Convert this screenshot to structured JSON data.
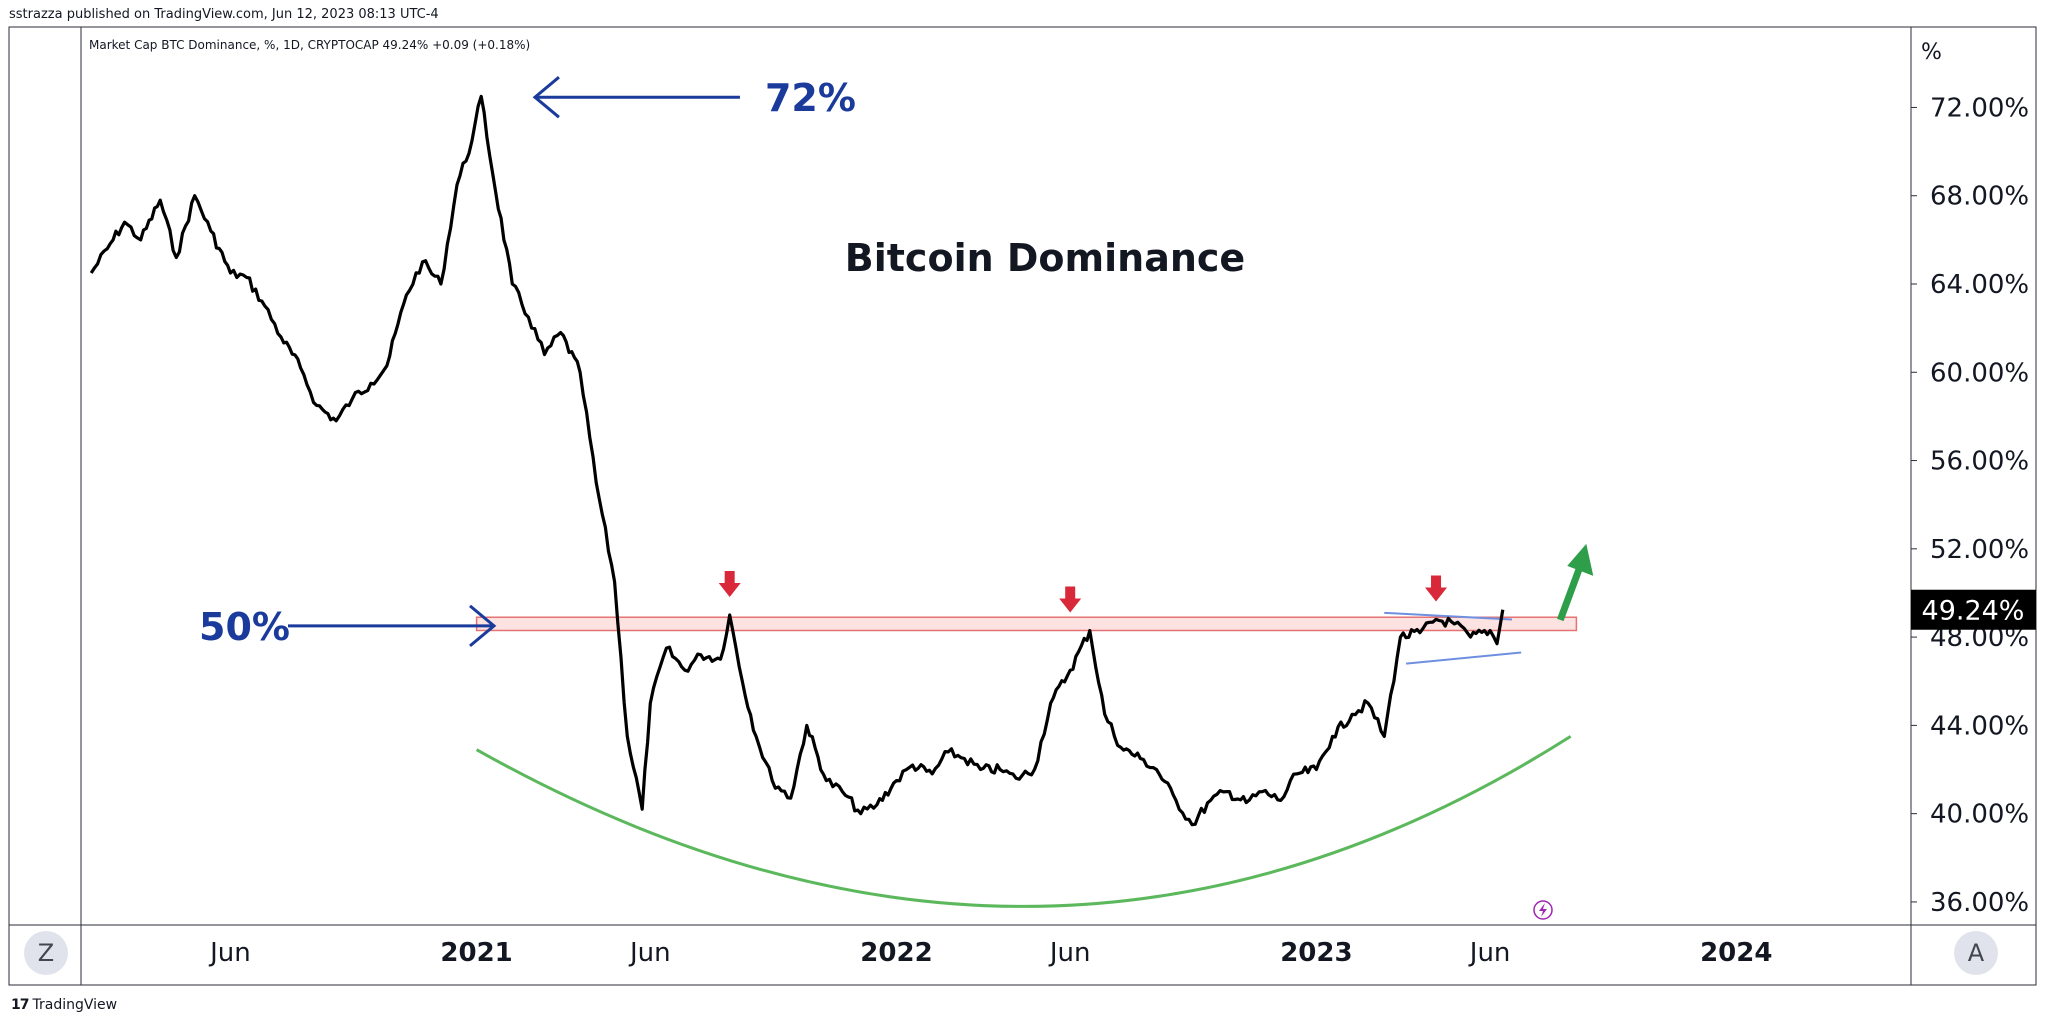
{
  "header": {
    "publisher": "sstrazza published on TradingView.com, Jun 12, 2023 08:13 UTC-4",
    "legend": "Market Cap BTC Dominance, %, 1D, CRYPTOCAP  49.24%  +0.09 (+0.18%)"
  },
  "footer": {
    "logo_text": "TradingView"
  },
  "controls": {
    "zoom_label": "Z",
    "auto_label": "A"
  },
  "colors": {
    "line": "#000000",
    "annotation_blue": "#1a3a9c",
    "support_arc": "#5cb85c",
    "resistance_fill": "#fde2e2",
    "resistance_stroke": "#e57373",
    "down_arrow": "#d9283a",
    "up_arrow": "#2e9e4a",
    "channel_line": "#6f8fe0",
    "price_label_bg": "#000000"
  },
  "chart_data": {
    "type": "line",
    "title": "Bitcoin Dominance",
    "series": [
      {
        "x": [
          "2020-02-01",
          "2020-02-15",
          "2020-03-01",
          "2020-03-15",
          "2020-04-01",
          "2020-04-15",
          "2020-05-01",
          "2020-05-15",
          "2020-06-01",
          "2020-06-15",
          "2020-07-01",
          "2020-07-15",
          "2020-08-01",
          "2020-08-15",
          "2020-09-01",
          "2020-09-15",
          "2020-10-01",
          "2020-10-15",
          "2020-11-01",
          "2020-11-15",
          "2020-12-01",
          "2020-12-15",
          "2020-12-28",
          "2021-01-05",
          "2021-01-15",
          "2021-02-01",
          "2021-02-15",
          "2021-03-01",
          "2021-03-15",
          "2021-04-01",
          "2021-04-15",
          "2021-05-01",
          "2021-05-12",
          "2021-05-25",
          "2021-06-01",
          "2021-06-15",
          "2021-07-01",
          "2021-07-15",
          "2021-08-01",
          "2021-08-09",
          "2021-08-20",
          "2021-09-01",
          "2021-09-15",
          "2021-10-01",
          "2021-10-15",
          "2021-11-01",
          "2021-11-15",
          "2021-12-01",
          "2021-12-15",
          "2022-01-01",
          "2022-01-15",
          "2022-02-01",
          "2022-02-15",
          "2022-03-01",
          "2022-03-15",
          "2022-04-01",
          "2022-04-15",
          "2022-05-01",
          "2022-05-15",
          "2022-06-01",
          "2022-06-18",
          "2022-07-01",
          "2022-07-15",
          "2022-08-01",
          "2022-08-15",
          "2022-09-01",
          "2022-09-15",
          "2022-10-01",
          "2022-10-15",
          "2022-11-01",
          "2022-11-15",
          "2022-12-01",
          "2022-12-15",
          "2023-01-01",
          "2023-01-15",
          "2023-02-01",
          "2023-02-15",
          "2023-03-01",
          "2023-03-15",
          "2023-04-01",
          "2023-04-15",
          "2023-05-01",
          "2023-05-15",
          "2023-06-01",
          "2023-06-07",
          "2023-06-12"
        ],
        "values": [
          64.5,
          65.6,
          66.8,
          66.0,
          67.8,
          65.2,
          68.0,
          66.4,
          64.5,
          64.3,
          63.0,
          61.6,
          60.2,
          58.5,
          57.8,
          58.8,
          59.5,
          60.3,
          63.5,
          65.0,
          64.0,
          68.5,
          70.5,
          72.5,
          69.0,
          64.0,
          62.5,
          60.8,
          61.8,
          60.0,
          55.0,
          50.5,
          43.5,
          40.2,
          45.0,
          47.5,
          46.5,
          47.2,
          47.0,
          49.0,
          46.0,
          43.5,
          41.5,
          40.7,
          44.0,
          41.5,
          41.0,
          40.0,
          40.4,
          41.5,
          42.2,
          41.8,
          42.8,
          42.5,
          42.0,
          42.0,
          41.6,
          42.0,
          45.0,
          46.5,
          48.3,
          44.5,
          43.0,
          42.5,
          42.0,
          40.6,
          39.5,
          40.6,
          41.0,
          40.5,
          41.0,
          40.6,
          41.8,
          42.0,
          43.5,
          44.5,
          45.0,
          43.5,
          48.0,
          48.2,
          48.8,
          48.6,
          48.0,
          48.3,
          47.7,
          49.24
        ]
      }
    ],
    "xlabel": "",
    "ylabel": "%",
    "ylim": [
      35.0,
      75.6
    ],
    "x_ticks": [
      {
        "date": "2020-06-01",
        "label": "Jun",
        "bold": false
      },
      {
        "date": "2021-01-01",
        "label": "2021",
        "bold": true
      },
      {
        "date": "2021-06-01",
        "label": "Jun",
        "bold": false
      },
      {
        "date": "2022-01-01",
        "label": "2022",
        "bold": true
      },
      {
        "date": "2022-06-01",
        "label": "Jun",
        "bold": false
      },
      {
        "date": "2023-01-01",
        "label": "2023",
        "bold": true
      },
      {
        "date": "2023-06-01",
        "label": "Jun",
        "bold": false
      },
      {
        "date": "2024-01-01",
        "label": "2024",
        "bold": true
      }
    ],
    "y_ticks": [
      {
        "value": 72,
        "label": "72.00%"
      },
      {
        "value": 68,
        "label": "68.00%"
      },
      {
        "value": 64,
        "label": "64.00%"
      },
      {
        "value": 60,
        "label": "60.00%"
      },
      {
        "value": 56,
        "label": "56.00%"
      },
      {
        "value": 52,
        "label": "52.00%"
      },
      {
        "value": 48,
        "label": "48.00%"
      },
      {
        "value": 44,
        "label": "44.00%"
      },
      {
        "value": 40,
        "label": "40.00%"
      },
      {
        "value": 36,
        "label": "36.00%"
      }
    ],
    "y_unit_label": "%",
    "last_price": {
      "value": 49.24,
      "label": "49.24%"
    },
    "grid": false,
    "annotations": {
      "peak": {
        "label": "72%",
        "date": "2021-01-10",
        "value": 72.6
      },
      "level": {
        "label": "50%",
        "value": 48.6
      },
      "resistance_zone": {
        "from_date": "2021-01-01",
        "to_date": "2023-08-15",
        "low": 48.3,
        "high": 48.9
      },
      "down_arrows": [
        {
          "date": "2021-08-09",
          "value": 49.0
        },
        {
          "date": "2022-06-01",
          "value": 48.3
        },
        {
          "date": "2023-04-15",
          "value": 48.8
        }
      ],
      "breakout_arrow": {
        "date": "2023-08-01",
        "value": 50.5
      },
      "support_arc": [
        {
          "date": "2021-01-01",
          "value": 42.9
        },
        {
          "date": "2022-05-01",
          "value": 35.8
        },
        {
          "date": "2023-08-10",
          "value": 43.5
        }
      ],
      "triangle_upper": [
        {
          "date": "2023-03-01",
          "value": 49.1
        },
        {
          "date": "2023-06-20",
          "value": 48.8
        }
      ],
      "triangle_lower": [
        {
          "date": "2023-03-20",
          "value": 46.8
        },
        {
          "date": "2023-06-28",
          "value": 47.3
        }
      ]
    }
  }
}
